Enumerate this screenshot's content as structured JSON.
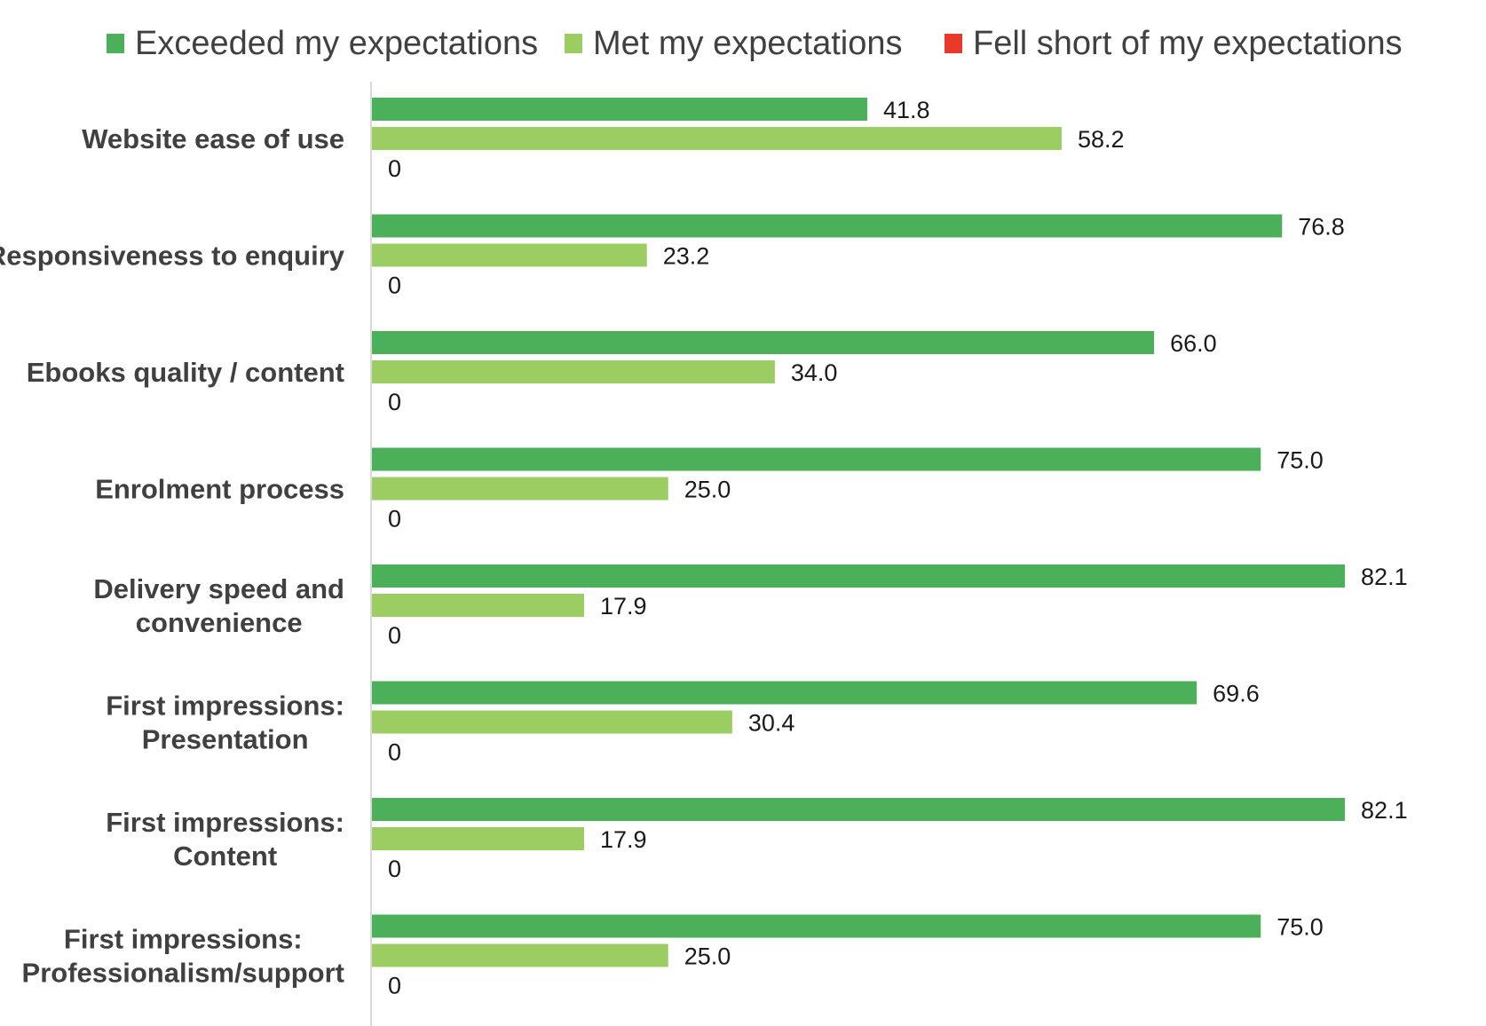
{
  "chart_data": {
    "type": "bar",
    "orientation": "horizontal",
    "categories": [
      [
        "Website ease of use"
      ],
      [
        "Responsiveness to enquiry"
      ],
      [
        "Ebooks quality / content"
      ],
      [
        "Enrolment process"
      ],
      [
        "Delivery speed and",
        "convenience"
      ],
      [
        "First impressions:",
        "Presentation"
      ],
      [
        "First impressions:",
        "Content"
      ],
      [
        "First impressions:",
        "Professionalism/support"
      ]
    ],
    "series": [
      {
        "name": "Exceeded my expectations",
        "color": "#4caf5a",
        "values": [
          41.8,
          76.8,
          66.0,
          75.0,
          82.1,
          69.6,
          82.1,
          75.0
        ],
        "labels": [
          "41.8",
          "76.8",
          "66.0",
          "75.0",
          "82.1",
          "69.6",
          "82.1",
          "75.0"
        ]
      },
      {
        "name": "Met my expectations",
        "color": "#9ccd62",
        "values": [
          58.2,
          23.2,
          34.0,
          25.0,
          17.9,
          30.4,
          17.9,
          25.0
        ],
        "labels": [
          "58.2",
          "23.2",
          "34.0",
          "25.0",
          "17.9",
          "30.4",
          "17.9",
          "25.0"
        ]
      },
      {
        "name": "Fell short of my expectations",
        "color": "#e8392a",
        "values": [
          0,
          0,
          0,
          0,
          0,
          0,
          0,
          0
        ],
        "labels": [
          "0",
          "0",
          "0",
          "0",
          "0",
          "0",
          "0",
          "0"
        ]
      }
    ],
    "xlim": [
      0,
      100
    ],
    "grid": false,
    "legend": "top"
  }
}
